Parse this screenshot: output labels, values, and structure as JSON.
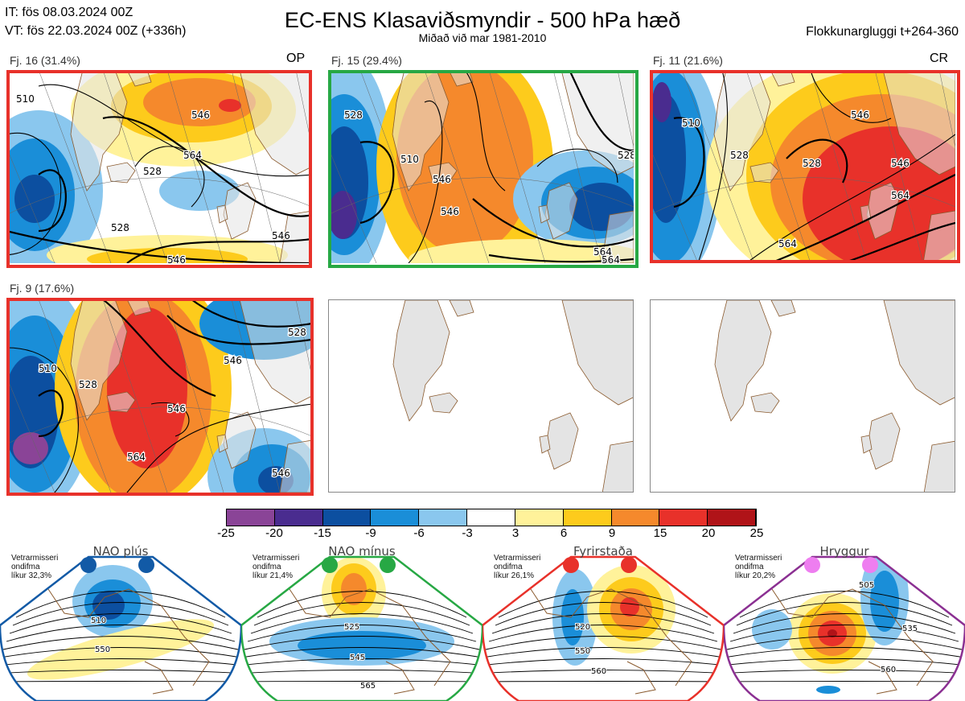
{
  "header": {
    "it_line": "IT: fös 08.03.2024 00Z",
    "vt_line": "VT: fös 22.03.2024 00Z  (+336h)",
    "title": "EC-ENS Klasaviðsmyndir - 500 hPa hæð",
    "subtitle": "Miðað við mar 1981-2010",
    "window": "Flokkunargluggi t+264-360"
  },
  "colors": {
    "red": "#e8312a",
    "green": "#27a844",
    "blue": "#125aa6",
    "purple": "#8b3092",
    "pink": "#ee7ef0",
    "land": "#e4e4e4",
    "coast": "#8a5a2e"
  },
  "panels": [
    {
      "label": "Fj. 16 (31.4%)",
      "tag": "OP",
      "frame": "red",
      "contours": [
        "510",
        "528",
        "546",
        "546",
        "546",
        "564",
        "528"
      ]
    },
    {
      "label": "Fj. 15 (29.4%)",
      "tag": "",
      "frame": "green",
      "contours": [
        "528",
        "546",
        "564",
        "546",
        "564",
        "510",
        "528"
      ]
    },
    {
      "label": "Fj. 11 (21.6%)",
      "tag": "CR",
      "frame": "red",
      "contours": [
        "510",
        "528",
        "528",
        "546",
        "564",
        "546",
        "564"
      ]
    },
    {
      "label": "Fj. 9 (17.6%)",
      "tag": "",
      "frame": "red",
      "contours": [
        "510",
        "528",
        "546",
        "564",
        "546",
        "546",
        "528"
      ]
    }
  ],
  "colorbar": {
    "ticks": [
      "-25",
      "-20",
      "-15",
      "-9",
      "-6",
      "-3",
      "3",
      "6",
      "9",
      "15",
      "20",
      "25"
    ],
    "colors": [
      "#8a4497",
      "#4a2c8f",
      "#0c4fa0",
      "#1a8ed8",
      "#8ac7ee",
      "#ffffff",
      "#fff29a",
      "#fdcb1c",
      "#f5892c",
      "#e8312a",
      "#b01318"
    ]
  },
  "regimes": [
    {
      "name": "NAO plús",
      "note": [
        "Vetrarmisseri",
        "ondifma",
        "líkur 32,3%"
      ],
      "color": "blue",
      "contours": [
        "510",
        "550"
      ]
    },
    {
      "name": "NAO mínus",
      "note": [
        "Vetrarmisseri",
        "ondifma",
        "líkur 21,4%"
      ],
      "color": "green",
      "contours": [
        "525",
        "545",
        "565"
      ]
    },
    {
      "name": "Fyrirstaða",
      "note": [
        "Vetrarmisseri",
        "ondifma",
        "líkur 26,1%"
      ],
      "color": "red",
      "contours": [
        "520",
        "550",
        "560"
      ]
    },
    {
      "name": "Hryggur",
      "note": [
        "Vetrarmisseri",
        "ondifma",
        "líkur 20,2%"
      ],
      "color": "purple",
      "contours": [
        "505",
        "535",
        "560"
      ]
    }
  ]
}
